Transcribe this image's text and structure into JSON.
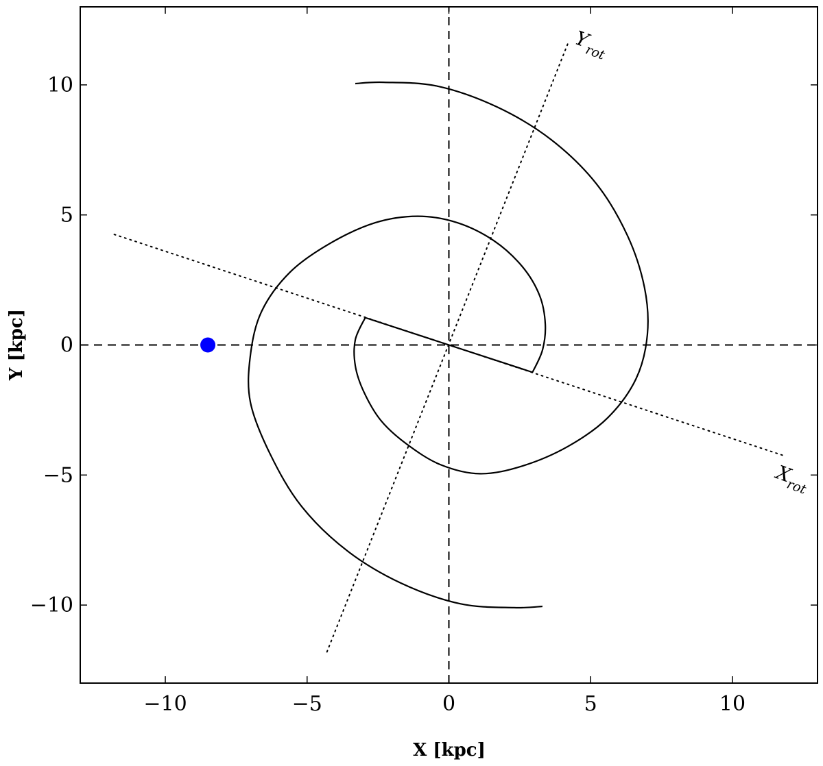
{
  "chart_data": {
    "type": "line",
    "title": "",
    "xlabel": "X [kpc]",
    "ylabel": "Y [kpc]",
    "xlim": [
      -13,
      13
    ],
    "ylim": [
      -13,
      13
    ],
    "x_ticks": [
      -10,
      -5,
      0,
      5,
      10
    ],
    "y_ticks": [
      -10,
      -5,
      0,
      5,
      10
    ],
    "x_tick_labels": [
      "−10",
      "−5",
      "0",
      "5",
      "10"
    ],
    "y_tick_labels": [
      "−10",
      "−5",
      "0",
      "5",
      "10"
    ],
    "grid": false,
    "legend": "none",
    "colors": {
      "sun_marker": "#0000ff",
      "lines": "#000000"
    },
    "reference_lines": [
      {
        "name": "x-axis",
        "style": "dashed",
        "points": [
          [
            -13,
            0
          ],
          [
            13,
            0
          ]
        ]
      },
      {
        "name": "y-axis",
        "style": "dashed",
        "points": [
          [
            0,
            -13
          ],
          [
            0,
            13
          ]
        ]
      }
    ],
    "rotated_axes": [
      {
        "label": "X",
        "subscript": "rot",
        "style": "dotted",
        "points": [
          [
            -11.8,
            4.25
          ],
          [
            11.8,
            -4.25
          ]
        ],
        "label_position": [
          11.5,
          -5.1
        ]
      },
      {
        "label": "Y",
        "subscript": "rot",
        "style": "dotted",
        "points": [
          [
            -4.3,
            -11.8
          ],
          [
            4.2,
            11.6
          ]
        ],
        "label_position": [
          4.4,
          11.6
        ]
      }
    ],
    "series": [
      {
        "style": "solid",
        "points": [
          [
            -2.95,
            1.05
          ],
          [
            2.95,
            -1.05
          ]
        ]
      },
      {
        "style": "solid",
        "points": [
          [
            -2.95,
            1.05
          ],
          [
            -3.3,
            0.2
          ],
          [
            -3.3,
            -0.8
          ],
          [
            -3.0,
            -1.8
          ],
          [
            -2.4,
            -2.9
          ],
          [
            -1.5,
            -3.8
          ],
          [
            -0.3,
            -4.6
          ],
          [
            1.1,
            -4.95
          ],
          [
            2.6,
            -4.65
          ],
          [
            4.2,
            -3.9
          ],
          [
            5.6,
            -2.8
          ],
          [
            6.6,
            -1.3
          ],
          [
            7.0,
            0.4
          ],
          [
            6.9,
            2.2
          ],
          [
            6.3,
            4.2
          ],
          [
            5.2,
            6.2
          ],
          [
            3.6,
            7.9
          ],
          [
            1.7,
            9.15
          ],
          [
            -0.4,
            9.95
          ],
          [
            -2.3,
            10.1
          ],
          [
            -3.3,
            10.05
          ]
        ]
      },
      {
        "style": "solid",
        "points": [
          [
            2.95,
            -1.05
          ],
          [
            3.3,
            -0.2
          ],
          [
            3.4,
            0.8
          ],
          [
            3.2,
            1.9
          ],
          [
            2.6,
            3.0
          ],
          [
            1.6,
            4.0
          ],
          [
            0.3,
            4.7
          ],
          [
            -1.1,
            4.95
          ],
          [
            -2.6,
            4.7
          ],
          [
            -4.2,
            3.9
          ],
          [
            -5.6,
            2.8
          ],
          [
            -6.6,
            1.3
          ],
          [
            -7.0,
            -0.4
          ],
          [
            -7.0,
            -2.2
          ],
          [
            -6.3,
            -4.2
          ],
          [
            -5.2,
            -6.2
          ],
          [
            -3.6,
            -7.9
          ],
          [
            -1.7,
            -9.15
          ],
          [
            0.4,
            -9.95
          ],
          [
            2.3,
            -10.1
          ],
          [
            3.3,
            -10.05
          ]
        ]
      }
    ],
    "sun": {
      "x": -8.5,
      "y": 0
    }
  }
}
